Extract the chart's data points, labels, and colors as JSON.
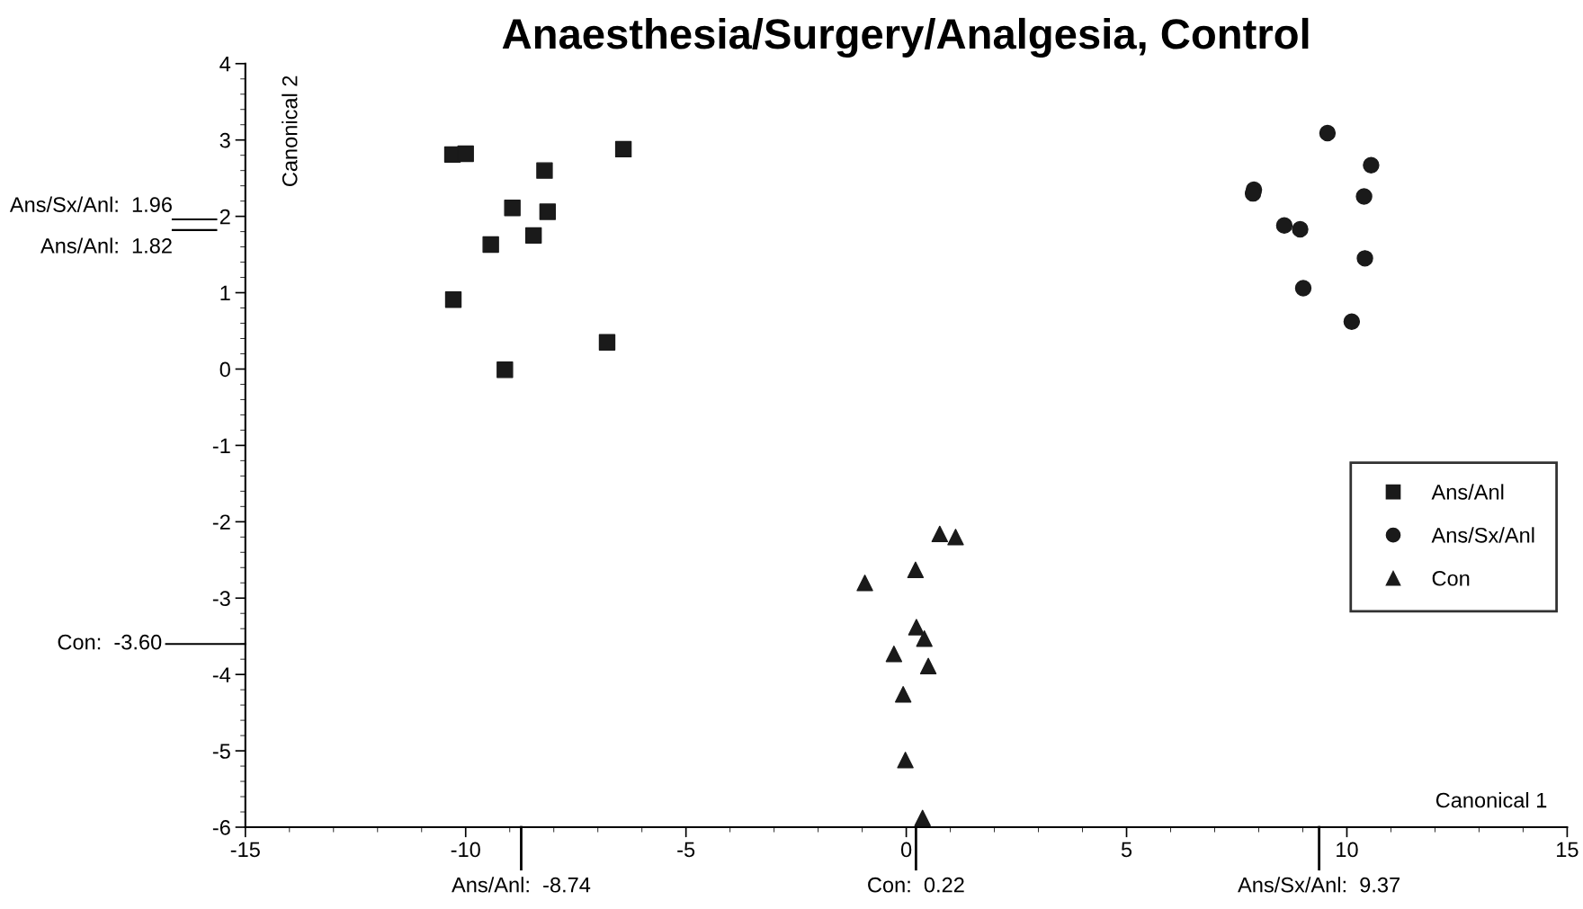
{
  "chart_data": {
    "type": "scatter",
    "title": "Anaesthesia/Surgery/Analgesia, Control",
    "xlabel": "Canonical 1",
    "ylabel": "Canonical 2",
    "xlim": [
      -15,
      15
    ],
    "xticks": [
      -15,
      -10,
      -5,
      0,
      5,
      10,
      15
    ],
    "ylim": [
      -6,
      4
    ],
    "yticks": [
      -6,
      -5,
      -4,
      -3,
      -2,
      -1,
      0,
      1,
      2,
      3,
      4
    ],
    "grid": false,
    "legend": "right",
    "series": [
      {
        "name": "Ans/Anl",
        "color": "#1a1a1a",
        "marker": "square",
        "x": [
          -10.3,
          -10.0,
          -6.42,
          -8.21,
          -8.94,
          -8.14,
          -8.46,
          -9.43,
          -10.28,
          -9.11,
          -6.79
        ],
        "values": [
          2.81,
          2.82,
          2.88,
          2.6,
          2.11,
          2.06,
          1.75,
          1.63,
          0.91,
          -0.01,
          0.35
        ]
      },
      {
        "name": "Ans/Sx/Anl",
        "color": "#1a1a1a",
        "marker": "circle",
        "x": [
          9.56,
          10.55,
          10.39,
          7.89,
          7.87,
          8.58,
          8.94,
          10.41,
          9.01,
          10.11
        ],
        "values": [
          3.09,
          2.67,
          2.26,
          2.35,
          2.3,
          1.88,
          1.83,
          1.45,
          1.06,
          0.62
        ]
      },
      {
        "name": "Con",
        "color": "#1a1a1a",
        "marker": "triangle",
        "x": [
          0.76,
          1.12,
          -0.94,
          0.21,
          0.23,
          0.41,
          -0.28,
          0.5,
          -0.07,
          -0.02,
          0.37
        ],
        "values": [
          -2.16,
          -2.2,
          -2.8,
          -2.63,
          -3.38,
          -3.53,
          -3.73,
          -3.89,
          -4.26,
          -5.12,
          -5.88
        ]
      }
    ],
    "ref_lines": [
      {
        "axis": "y",
        "value": 1.96,
        "label": "Ans/Sx/Anl:  1.96"
      },
      {
        "axis": "y",
        "value": 1.82,
        "label": "Ans/Anl:  1.82"
      },
      {
        "axis": "y",
        "value": -3.6,
        "label": "Con:  -3.60"
      },
      {
        "axis": "x",
        "value": -8.74,
        "label": "Ans/Anl:  -8.74"
      },
      {
        "axis": "x",
        "value": 0.22,
        "label": "Con:  0.22"
      },
      {
        "axis": "x",
        "value": 9.37,
        "label": "Ans/Sx/Anl:  9.37"
      }
    ]
  }
}
